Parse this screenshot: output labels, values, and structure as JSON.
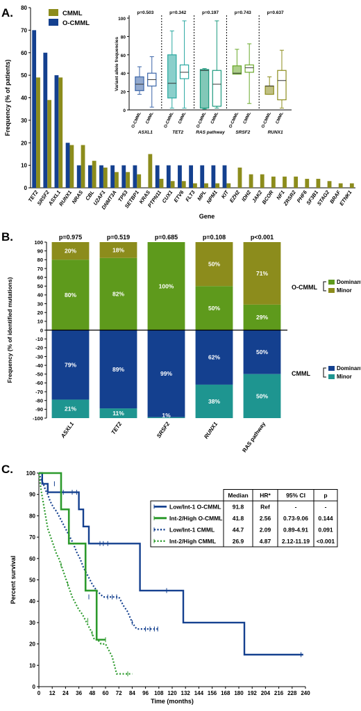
{
  "colors": {
    "cmml_olive": "#8c8c1c",
    "ocmml_blue": "#14408f",
    "dominant_green": "#5e9a1c",
    "minor_olive": "#8c8c1c",
    "cmml_dominant_blue": "#14408f",
    "cmml_minor_teal": "#1e9590",
    "inset_asxl1": "#3a64a8",
    "inset_tet2": "#2aa8a0",
    "inset_ras": "#1c9a7e",
    "inset_srsf2": "#6aa82a",
    "inset_runx1": "#8c8c1c",
    "km_blue": "#14408f",
    "km_green": "#2c9a2c"
  },
  "panels": {
    "a": "A.",
    "b": "B.",
    "c": "C."
  },
  "chart_data": [
    {
      "id": "panel-a-bars",
      "type": "bar",
      "ylabel": "Frequency (% of patients)",
      "xlabel": "Gene",
      "ylim": [
        0,
        80
      ],
      "yticks": [
        0,
        10,
        20,
        30,
        40,
        50,
        60,
        70,
        80
      ],
      "legend": [
        "CMML",
        "O-CMML"
      ],
      "categories": [
        "TET2",
        "SRSF2",
        "ASXL1",
        "RUNX1",
        "NRAS",
        "CBL",
        "U2AF1",
        "DNMT3A",
        "TP53",
        "SETBP1",
        "KRAS",
        "PTPN11",
        "CUX1",
        "ETV6",
        "FLT3",
        "MPL",
        "NPM1",
        "KIT",
        "EZH2",
        "IDH2",
        "JAK2",
        "BCOR",
        "NF1",
        "ZRSR2",
        "PHF6",
        "SF3B1",
        "STAG2",
        "BRAF",
        "ETNK1"
      ],
      "series": [
        {
          "name": "CMML",
          "values": [
            49,
            39,
            49,
            19,
            19,
            12,
            9,
            7,
            7,
            6,
            15,
            4,
            3,
            3,
            2,
            2,
            2,
            2,
            9,
            6,
            6,
            5,
            5,
            5,
            4,
            4,
            3,
            2,
            2
          ]
        },
        {
          "name": "O-CMML",
          "values": [
            70,
            60,
            50,
            20,
            10,
            10,
            10,
            10,
            10,
            10,
            0,
            10,
            10,
            10,
            10,
            10,
            10,
            10,
            0,
            0,
            0,
            0,
            0,
            0,
            0,
            0,
            0,
            0,
            0
          ]
        }
      ]
    },
    {
      "id": "panel-a-inset",
      "type": "box",
      "ylabel": "Variant allele frequencies",
      "ylim": [
        0,
        100
      ],
      "yticks": [
        0,
        20,
        40,
        60,
        80,
        100
      ],
      "groups": [
        {
          "name": "ASXL1",
          "p": "p=0.503",
          "boxes": [
            {
              "label": "O-CMML",
              "min": 17,
              "q1": 21,
              "median": 28,
              "q3": 36,
              "max": 47
            },
            {
              "label": "CMML",
              "min": 3,
              "q1": 26,
              "median": 33,
              "q3": 40,
              "max": 58
            }
          ]
        },
        {
          "name": "TET2",
          "p": "p=0.342",
          "boxes": [
            {
              "label": "O-CMML",
              "min": 2,
              "q1": 13,
              "median": 29,
              "q3": 60,
              "max": 86
            },
            {
              "label": "CMML",
              "min": 2,
              "q1": 34,
              "median": 41,
              "q3": 49,
              "max": 97
            }
          ]
        },
        {
          "name": "RAS pathway",
          "p": "p=0.197",
          "boxes": [
            {
              "label": "O-CMML",
              "min": 1,
              "q1": 2,
              "median": 43,
              "q3": 44,
              "max": 45
            },
            {
              "label": "CMML",
              "min": 2,
              "q1": 4,
              "median": 28,
              "q3": 43,
              "max": 97
            }
          ]
        },
        {
          "name": "SRSF2",
          "p": "p=0.743",
          "boxes": [
            {
              "label": "O-CMML",
              "min": 39,
              "q1": 39,
              "median": 40,
              "q3": 48,
              "max": 66
            },
            {
              "label": "CMML",
              "min": 7,
              "q1": 41,
              "median": 46,
              "q3": 49,
              "max": 72
            }
          ]
        },
        {
          "name": "RUNX1",
          "p": "p=0.637",
          "boxes": [
            {
              "label": "O-CMML",
              "min": 17,
              "q1": 17,
              "median": 26,
              "q3": 26,
              "max": 36
            },
            {
              "label": "CMML",
              "min": 2,
              "q1": 11,
              "median": 32,
              "q3": 43,
              "max": 65
            }
          ]
        }
      ]
    },
    {
      "id": "panel-b",
      "type": "bar",
      "ylabel": "Frequency (% of identified mutations)",
      "ylim": [
        -100,
        100
      ],
      "yticks": [
        -100,
        -90,
        -80,
        -70,
        -60,
        -50,
        -40,
        -30,
        -20,
        -10,
        0,
        10,
        20,
        30,
        40,
        50,
        60,
        70,
        80,
        90,
        100
      ],
      "categories": [
        "ASXL1",
        "TET2",
        "SRSF2",
        "RUNX1",
        "RAS pathway"
      ],
      "p_values": [
        "p=0.975",
        "p=0.519",
        "p=0.685",
        "p=0.108",
        "p<0.001"
      ],
      "legend_groups": [
        {
          "group": "O-CMML",
          "entries": [
            "Dominant",
            "Minor"
          ]
        },
        {
          "group": "CMML",
          "entries": [
            "Dominant",
            "Minor"
          ]
        }
      ],
      "series": [
        {
          "name": "O-CMML Dominant",
          "values": [
            80,
            82,
            100,
            50,
            29
          ],
          "labels": [
            "80%",
            "82%",
            "100%",
            "50%",
            "29%"
          ]
        },
        {
          "name": "O-CMML Minor",
          "values": [
            20,
            18,
            0,
            50,
            71
          ],
          "labels": [
            "20%",
            "18%",
            "",
            "50%",
            "71%"
          ]
        },
        {
          "name": "CMML Dominant",
          "values": [
            -79,
            -89,
            -99,
            -62,
            -50
          ],
          "labels": [
            "79%",
            "89%",
            "99%",
            "62%",
            "50%"
          ]
        },
        {
          "name": "CMML Minor",
          "values": [
            -21,
            -11,
            -1,
            -38,
            -50
          ],
          "labels": [
            "21%",
            "11%",
            "1%",
            "38%",
            "50%"
          ]
        }
      ]
    },
    {
      "id": "panel-c",
      "type": "line",
      "ylabel": "Percent survival",
      "xlabel": "Time (months)",
      "xlim": [
        0,
        240
      ],
      "ylim": [
        0,
        100
      ],
      "xticks": [
        0,
        12,
        24,
        36,
        48,
        60,
        72,
        84,
        96,
        108,
        120,
        132,
        144,
        156,
        168,
        180,
        192,
        204,
        216,
        228,
        240
      ],
      "yticks": [
        0,
        10,
        20,
        30,
        40,
        50,
        60,
        70,
        80,
        90,
        100
      ],
      "table_header": [
        "Median",
        "HR*",
        "95% CI",
        "p"
      ],
      "series": [
        {
          "name": "Low/Int-1 O-CMML",
          "median": "91.8",
          "hr": "Ref",
          "ci": "-",
          "p": "-",
          "points": [
            [
              0,
              100
            ],
            [
              3,
              100
            ],
            [
              3,
              95
            ],
            [
              8,
              95
            ],
            [
              8,
              91
            ],
            [
              36,
              91
            ],
            [
              36,
              83
            ],
            [
              40,
              83
            ],
            [
              40,
              75
            ],
            [
              45,
              75
            ],
            [
              45,
              67
            ],
            [
              91,
              67
            ],
            [
              91,
              45
            ],
            [
              130,
              45
            ],
            [
              130,
              30
            ],
            [
              185,
              30
            ],
            [
              185,
              15
            ],
            [
              238,
              15
            ]
          ],
          "censor": [
            [
              14,
              95
            ],
            [
              22,
              91
            ],
            [
              30,
              91
            ],
            [
              34,
              91
            ],
            [
              55,
              67
            ],
            [
              58,
              67
            ],
            [
              62,
              67
            ],
            [
              115,
              45
            ],
            [
              236,
              15
            ]
          ]
        },
        {
          "name": "Int-2/High O-CMML",
          "median": "41.8",
          "hr": "2.56",
          "ci": "0.73-9.06",
          "p": "0.144",
          "points": [
            [
              0,
              100
            ],
            [
              20,
              100
            ],
            [
              20,
              83
            ],
            [
              27,
              83
            ],
            [
              27,
              67
            ],
            [
              42,
              67
            ],
            [
              42,
              45
            ],
            [
              52,
              45
            ],
            [
              52,
              22
            ],
            [
              60,
              22
            ]
          ],
          "censor": [
            [
              60,
              22
            ]
          ]
        },
        {
          "name": "Low/Int-1 CMML",
          "median": "44.7",
          "hr": "2.09",
          "ci": "0.89-4.91",
          "p": "0.091",
          "points": [
            [
              0,
              100
            ],
            [
              2,
              97
            ],
            [
              4,
              95
            ],
            [
              6,
              92
            ],
            [
              8,
              90
            ],
            [
              10,
              87
            ],
            [
              13,
              84
            ],
            [
              16,
              82
            ],
            [
              19,
              79
            ],
            [
              22,
              76
            ],
            [
              25,
              73
            ],
            [
              28,
              70
            ],
            [
              31,
              67
            ],
            [
              34,
              63
            ],
            [
              37,
              60
            ],
            [
              40,
              56
            ],
            [
              44,
              52
            ],
            [
              48,
              48
            ],
            [
              52,
              45
            ],
            [
              58,
              42
            ],
            [
              72,
              42
            ],
            [
              76,
              38
            ],
            [
              80,
              35
            ],
            [
              84,
              30
            ],
            [
              88,
              27
            ],
            [
              108,
              27
            ]
          ],
          "censor": [
            [
              45,
              42
            ],
            [
              62,
              42
            ],
            [
              66,
              42
            ],
            [
              70,
              42
            ],
            [
              84,
              30
            ],
            [
              96,
              27
            ],
            [
              100,
              27
            ],
            [
              104,
              27
            ],
            [
              107,
              27
            ]
          ]
        },
        {
          "name": "Int-2/High CMML",
          "median": "26.9",
          "hr": "4.87",
          "ci": "2.12-11.19",
          "p": "<0.001",
          "points": [
            [
              0,
              100
            ],
            [
              1,
              96
            ],
            [
              2,
              92
            ],
            [
              3,
              89
            ],
            [
              4,
              86
            ],
            [
              5,
              83
            ],
            [
              6,
              80
            ],
            [
              7,
              77
            ],
            [
              8,
              74
            ],
            [
              10,
              71
            ],
            [
              12,
              68
            ],
            [
              14,
              65
            ],
            [
              16,
              62
            ],
            [
              18,
              60
            ],
            [
              20,
              57
            ],
            [
              22,
              54
            ],
            [
              24,
              51
            ],
            [
              26,
              48
            ],
            [
              28,
              45
            ],
            [
              30,
              42
            ],
            [
              33,
              39
            ],
            [
              36,
              36
            ],
            [
              39,
              34
            ],
            [
              42,
              31
            ],
            [
              45,
              28
            ],
            [
              48,
              25
            ],
            [
              50,
              22
            ],
            [
              53,
              22
            ],
            [
              56,
              20
            ],
            [
              60,
              20
            ],
            [
              66,
              14
            ],
            [
              70,
              6
            ],
            [
              84,
              6
            ]
          ],
          "censor": [
            [
              20,
              57
            ],
            [
              26,
              48
            ],
            [
              44,
              31
            ],
            [
              48,
              25
            ],
            [
              80,
              6
            ]
          ]
        }
      ]
    }
  ]
}
